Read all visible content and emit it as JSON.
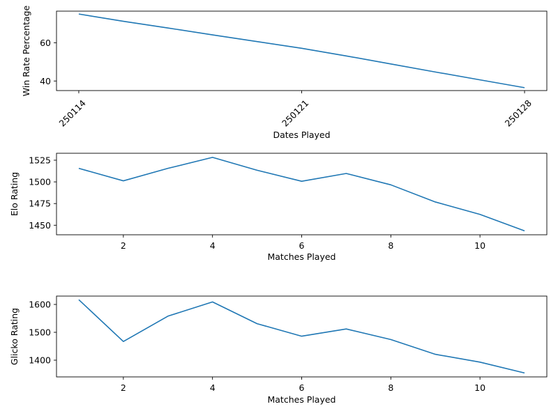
{
  "chart_data": [
    {
      "type": "line",
      "title": "",
      "xlabel": "Dates Played",
      "ylabel": "Win Rate Percentage",
      "x_tick_labels": [
        "250114",
        "250121",
        "250128"
      ],
      "x": [
        0,
        1,
        2,
        3,
        4,
        5,
        6,
        7,
        8,
        9,
        10
      ],
      "xlim": [
        -0.5,
        10.5
      ],
      "x_tick_positions": [
        0,
        5,
        10
      ],
      "ylim": [
        35,
        76.5
      ],
      "yticks": [
        40,
        60
      ],
      "grid": false,
      "series": [
        {
          "values": [
            75,
            71.2,
            67.7,
            64.1,
            60.6,
            57.1,
            53.1,
            48.9,
            44.7,
            40.6,
            36.5
          ]
        }
      ]
    },
    {
      "type": "line",
      "title": "",
      "xlabel": "Matches Played",
      "ylabel": "Elo Rating",
      "x": [
        1,
        2,
        3,
        4,
        5,
        6,
        7,
        8,
        9,
        10,
        11
      ],
      "xlim": [
        0.5,
        11.5
      ],
      "xticks": [
        2,
        4,
        6,
        8,
        10
      ],
      "ylim": [
        1439,
        1533
      ],
      "yticks": [
        1450,
        1475,
        1500,
        1525
      ],
      "grid": false,
      "series": [
        {
          "values": [
            1515.6,
            1501.2,
            1515.6,
            1528.3,
            1513.4,
            1500.7,
            1509.7,
            1496.6,
            1476.8,
            1462.5,
            1443.5
          ]
        }
      ]
    },
    {
      "type": "line",
      "title": "",
      "xlabel": "Matches Played",
      "ylabel": "Glicko Rating",
      "x": [
        1,
        2,
        3,
        4,
        5,
        6,
        7,
        8,
        9,
        10,
        11
      ],
      "xlim": [
        0.5,
        11.5
      ],
      "xticks": [
        2,
        4,
        6,
        8,
        10
      ],
      "ylim": [
        1340,
        1630
      ],
      "yticks": [
        1400,
        1500,
        1600
      ],
      "grid": false,
      "series": [
        {
          "values": [
            1617,
            1467,
            1558,
            1609,
            1531,
            1486,
            1512,
            1474,
            1421,
            1393,
            1354
          ]
        }
      ]
    }
  ],
  "style": {
    "line_color": "#1f77b4"
  }
}
